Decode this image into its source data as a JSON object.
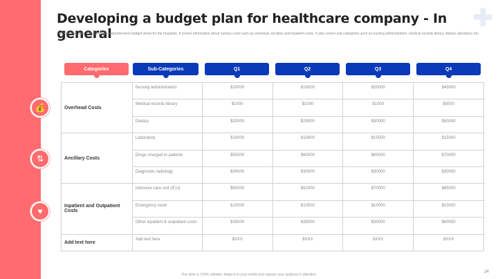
{
  "title": "Developing a budget plan for healthcare company - In general",
  "description": "The following slide showcases a comprehensive budget sheet for the hospitals. It covers information about various costs such as overhead, ancillary and inpatient costs. It also covers sub-categories such as nursing administration, medical records library, dietary, laboratory etc.",
  "headers": [
    "Categories",
    "Sub-Categories",
    "Q1",
    "Q2",
    "Q3",
    "Q4"
  ],
  "colors": {
    "accent": "#ff6b6e",
    "header_blue": "#0a3ab8"
  },
  "groups": [
    {
      "category": "Overhead Costs",
      "icon": "money-bag-icon",
      "rows": [
        {
          "sub": "Nursing administration",
          "q": [
            "$10000",
            "$18000",
            "$25000",
            "$45000"
          ]
        },
        {
          "sub": "Medical records library",
          "q": [
            "$1000",
            "$1000",
            "$1000",
            "$5000"
          ]
        },
        {
          "sub": "Dietary",
          "q": [
            "$20000",
            "$25000",
            "$30000",
            "$50000"
          ]
        }
      ]
    },
    {
      "category": "Ancillary Costs",
      "icon": "arrows-updown-icon",
      "rows": [
        {
          "sub": "Laboratory",
          "q": [
            "$10000",
            "$10000",
            "$15000",
            "$15000"
          ]
        },
        {
          "sub": "Drugs charged to patients",
          "q": [
            "$50000",
            "$60000",
            "$65000",
            "$70000"
          ]
        },
        {
          "sub": "Diagnostic radiology",
          "q": [
            "$30000",
            "$30000",
            "$30000",
            "$30000"
          ]
        }
      ]
    },
    {
      "category": "Inpatient and Outpatient Costs",
      "icon": "hand-heart-icon",
      "rows": [
        {
          "sub": "Intensive care unit (ICU)",
          "q": [
            "$60000",
            "$62000",
            "$70000",
            "$85000"
          ]
        },
        {
          "sub": "Emergency room",
          "q": [
            "$10000",
            "$10000",
            "$10000",
            "$10000"
          ]
        },
        {
          "sub": "Other inpatient & outpatient costs",
          "q": [
            "$35000",
            "$35000",
            "$35000",
            "$60000"
          ]
        }
      ]
    },
    {
      "category": "Add text here",
      "rows": [
        {
          "sub": "Add text here",
          "q": [
            "$XXX",
            "$XXX",
            "$XXX",
            "$XXX"
          ]
        }
      ]
    }
  ],
  "footer": "This slide is 100% editable. Adapt it to your needs and capture your audience's attention.",
  "page_number": "24"
}
